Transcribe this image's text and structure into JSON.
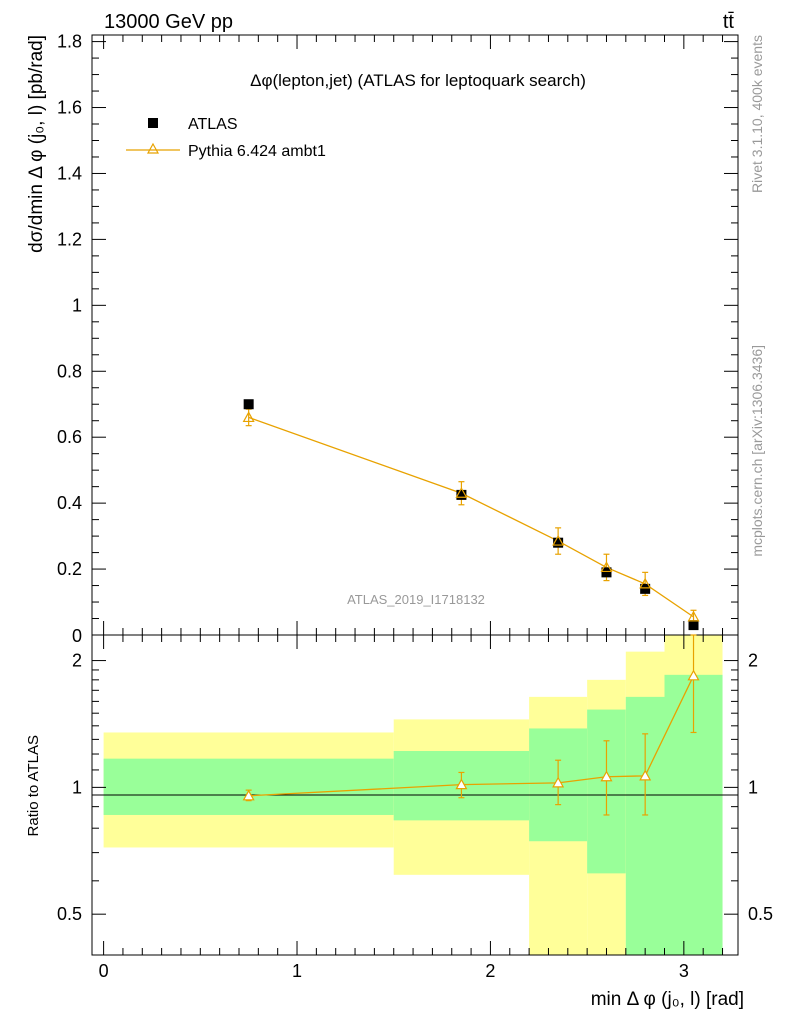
{
  "header": {
    "energy_label": "13000 GeV pp",
    "process_label": "tt̄"
  },
  "side_text": {
    "rivet": "Rivet 3.1.10,  400k events",
    "source": "mcplots.cern.ch [arXiv:1306.3436]"
  },
  "colors": {
    "mc": "#e8a200",
    "data": "#000000",
    "band_outer": "#ffff99",
    "band_inner": "#99ff99"
  },
  "chart_data": {
    "type": "scatter",
    "title": "Δφ(lepton,jet) (ATLAS for leptoquark search)",
    "watermark": "ATLAS_2019_I1718132",
    "xlabel": "min Δ φ (j₀, l) [rad]",
    "ylabel": "dσ/dmin Δ φ (j₀, l) [pb/rad]",
    "ratio_ylabel": "Ratio to ATLAS",
    "xlim": [
      -0.06,
      3.28
    ],
    "ylim": [
      0,
      1.82
    ],
    "ratio_ylim": [
      0.4,
      2.3
    ],
    "x_ticks": [
      0,
      1,
      2,
      3
    ],
    "y_ticks": [
      0.2,
      0.4,
      0.6,
      0.8,
      1,
      1.2,
      1.4,
      1.6,
      1.8
    ],
    "y_tick_labels": [
      "0.2",
      "0.4",
      "0.6",
      "0.8",
      "1",
      "1.2",
      "1.4",
      "1.6",
      "1.8"
    ],
    "y_zero_label": "0",
    "ratio_ticks": [
      0.5,
      1,
      2
    ],
    "ratio_tick_labels": [
      "0.5",
      "1",
      "2"
    ],
    "legend": [
      {
        "name": "ATLAS",
        "marker": "square"
      },
      {
        "name": "Pythia 6.424 ambt1",
        "marker": "triangle"
      }
    ],
    "series": [
      {
        "name": "ATLAS",
        "x": [
          0.75,
          1.85,
          2.35,
          2.6,
          2.8,
          3.05
        ],
        "y": [
          0.7,
          0.425,
          0.28,
          0.19,
          0.14,
          0.03
        ]
      },
      {
        "name": "Pythia 6.424 ambt1",
        "x": [
          0.75,
          1.85,
          2.35,
          2.6,
          2.8,
          3.05
        ],
        "y": [
          0.66,
          0.43,
          0.285,
          0.205,
          0.155,
          0.055
        ],
        "yerr": [
          0.025,
          0.035,
          0.04,
          0.04,
          0.035,
          0.02
        ]
      }
    ],
    "bins": [
      {
        "lo": 0.0,
        "hi": 1.5,
        "inner": [
          0.86,
          1.17
        ],
        "outer": [
          0.72,
          1.35
        ]
      },
      {
        "lo": 1.5,
        "hi": 2.2,
        "inner": [
          0.835,
          1.22
        ],
        "outer": [
          0.62,
          1.45
        ]
      },
      {
        "lo": 2.2,
        "hi": 2.5,
        "inner": [
          0.745,
          1.38
        ],
        "outer": [
          0.4,
          1.64
        ]
      },
      {
        "lo": 2.5,
        "hi": 2.7,
        "inner": [
          0.625,
          1.53
        ],
        "outer": [
          0.4,
          1.8
        ]
      },
      {
        "lo": 2.7,
        "hi": 2.9,
        "inner": [
          0.4,
          1.64
        ],
        "outer": [
          0.4,
          2.1
        ]
      },
      {
        "lo": 2.9,
        "hi": 3.2,
        "inner": [
          0.4,
          1.85
        ],
        "outer": [
          0.4,
          2.3
        ]
      }
    ],
    "ratio": {
      "x": [
        0.75,
        1.85,
        2.35,
        2.6,
        2.8,
        3.05
      ],
      "y": [
        0.955,
        1.015,
        1.025,
        1.06,
        1.065,
        1.84
      ],
      "lo": [
        0.93,
        0.945,
        0.91,
        0.86,
        0.86,
        1.35
      ],
      "hi": [
        0.985,
        1.085,
        1.16,
        1.29,
        1.34,
        2.3
      ]
    }
  }
}
